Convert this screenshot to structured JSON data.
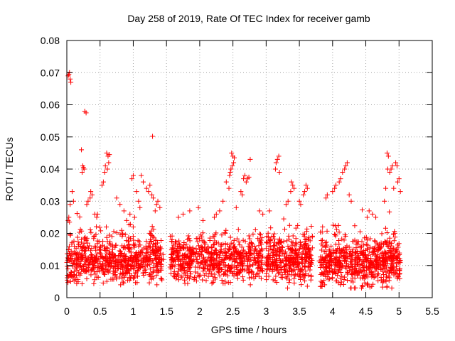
{
  "chart_data": {
    "type": "scatter",
    "title": "Day 258 of 2019, Rate Of TEC Index for receiver gamb",
    "xlabel": "GPS time / hours",
    "ylabel": "ROTI / TECUs",
    "xlim": [
      0,
      5.5
    ],
    "ylim": [
      0,
      0.08
    ],
    "xticks": [
      0,
      0.5,
      1,
      1.5,
      2,
      2.5,
      3,
      3.5,
      4,
      4.5,
      5,
      5.5
    ],
    "xtick_labels": [
      "0",
      "0.5",
      "1",
      "1.5",
      "2",
      "2.5",
      "3",
      "3.5",
      "4",
      "4.5",
      "5",
      "5.5"
    ],
    "yticks": [
      0,
      0.01,
      0.02,
      0.03,
      0.04,
      0.05,
      0.06,
      0.07,
      0.08
    ],
    "ytick_labels": [
      "0",
      "0.01",
      "0.02",
      "0.03",
      "0.04",
      "0.05",
      "0.06",
      "0.07",
      "0.08"
    ],
    "grid": true,
    "marker": "+",
    "color": "#ff0000",
    "series": [
      {
        "name": "ROTI",
        "points": [
          [
            0.02,
            0.069
          ],
          [
            0.04,
            0.07
          ],
          [
            0.05,
            0.068
          ],
          [
            0.06,
            0.067
          ],
          [
            0.03,
            0.0695
          ],
          [
            0.27,
            0.058
          ],
          [
            0.29,
            0.0575
          ],
          [
            1.29,
            0.0502
          ],
          [
            0.22,
            0.046
          ],
          [
            0.24,
            0.041
          ],
          [
            0.26,
            0.04
          ],
          [
            0.23,
            0.039
          ],
          [
            0.25,
            0.0405
          ],
          [
            0.6,
            0.045
          ],
          [
            0.62,
            0.044
          ],
          [
            0.64,
            0.0445
          ],
          [
            0.58,
            0.041
          ],
          [
            0.61,
            0.04
          ],
          [
            0.57,
            0.039
          ],
          [
            0.63,
            0.042
          ],
          [
            0.55,
            0.036
          ],
          [
            0.53,
            0.035
          ],
          [
            1.0,
            0.038
          ],
          [
            0.98,
            0.037
          ],
          [
            1.12,
            0.038
          ],
          [
            1.15,
            0.036
          ],
          [
            1.2,
            0.034
          ],
          [
            1.25,
            0.035
          ],
          [
            1.23,
            0.033
          ],
          [
            1.05,
            0.033
          ],
          [
            1.28,
            0.032
          ],
          [
            1.3,
            0.031
          ],
          [
            0.08,
            0.033
          ],
          [
            0.1,
            0.03
          ],
          [
            0.05,
            0.029
          ],
          [
            0.03,
            0.025
          ],
          [
            0.02,
            0.024
          ],
          [
            0.04,
            0.0235
          ],
          [
            0.36,
            0.033
          ],
          [
            0.38,
            0.032
          ],
          [
            0.35,
            0.031
          ],
          [
            0.32,
            0.03
          ],
          [
            0.3,
            0.029
          ],
          [
            0.42,
            0.026
          ],
          [
            0.45,
            0.025
          ],
          [
            0.46,
            0.026
          ],
          [
            0.75,
            0.031
          ],
          [
            0.8,
            0.029
          ],
          [
            0.86,
            0.027
          ],
          [
            0.9,
            0.024
          ],
          [
            0.95,
            0.026
          ],
          [
            1.02,
            0.025
          ],
          [
            1.08,
            0.03
          ],
          [
            1.1,
            0.028
          ],
          [
            1.35,
            0.029
          ],
          [
            1.37,
            0.03
          ],
          [
            1.4,
            0.028
          ],
          [
            1.33,
            0.027
          ],
          [
            2.48,
            0.045
          ],
          [
            2.5,
            0.044
          ],
          [
            2.52,
            0.0435
          ],
          [
            2.49,
            0.041
          ],
          [
            2.47,
            0.04
          ],
          [
            2.46,
            0.039
          ],
          [
            2.51,
            0.042
          ],
          [
            2.45,
            0.038
          ],
          [
            2.76,
            0.043
          ],
          [
            2.72,
            0.037
          ],
          [
            2.7,
            0.036
          ],
          [
            2.74,
            0.0375
          ],
          [
            2.66,
            0.037
          ],
          [
            2.68,
            0.038
          ],
          [
            2.62,
            0.033
          ],
          [
            2.64,
            0.032
          ],
          [
            2.4,
            0.036
          ],
          [
            2.44,
            0.034
          ],
          [
            2.35,
            0.03
          ],
          [
            3.17,
            0.043
          ],
          [
            3.19,
            0.044
          ],
          [
            3.15,
            0.042
          ],
          [
            3.14,
            0.04
          ],
          [
            3.2,
            0.039
          ],
          [
            3.38,
            0.036
          ],
          [
            3.4,
            0.035
          ],
          [
            3.37,
            0.033
          ],
          [
            3.42,
            0.034
          ],
          [
            3.33,
            0.03
          ],
          [
            3.3,
            0.029
          ],
          [
            3.6,
            0.035
          ],
          [
            3.62,
            0.034
          ],
          [
            3.58,
            0.033
          ],
          [
            3.56,
            0.032
          ],
          [
            3.5,
            0.03
          ],
          [
            3.52,
            0.029
          ],
          [
            2.22,
            0.025
          ],
          [
            2.25,
            0.026
          ],
          [
            1.98,
            0.028
          ],
          [
            1.85,
            0.027
          ],
          [
            1.75,
            0.026
          ],
          [
            1.68,
            0.025
          ],
          [
            2.05,
            0.024
          ],
          [
            2.3,
            0.027
          ],
          [
            2.55,
            0.028
          ],
          [
            2.9,
            0.027
          ],
          [
            2.95,
            0.026
          ],
          [
            3.05,
            0.027
          ],
          [
            4.18,
            0.04
          ],
          [
            4.2,
            0.041
          ],
          [
            4.22,
            0.042
          ],
          [
            4.15,
            0.039
          ],
          [
            4.12,
            0.037
          ],
          [
            4.1,
            0.036
          ],
          [
            4.05,
            0.035
          ],
          [
            4.03,
            0.034
          ],
          [
            4.0,
            0.033
          ],
          [
            3.92,
            0.032
          ],
          [
            3.9,
            0.031
          ],
          [
            4.25,
            0.032
          ],
          [
            4.28,
            0.03
          ],
          [
            4.82,
            0.045
          ],
          [
            4.84,
            0.044
          ],
          [
            4.83,
            0.04
          ],
          [
            4.86,
            0.039
          ],
          [
            4.88,
            0.04
          ],
          [
            4.9,
            0.041
          ],
          [
            4.95,
            0.042
          ],
          [
            4.97,
            0.041
          ],
          [
            5.0,
            0.037
          ],
          [
            4.98,
            0.036
          ],
          [
            4.92,
            0.034
          ],
          [
            4.8,
            0.034
          ],
          [
            4.78,
            0.03
          ],
          [
            5.02,
            0.033
          ],
          [
            4.55,
            0.027
          ],
          [
            4.52,
            0.025
          ],
          [
            4.6,
            0.026
          ],
          [
            4.65,
            0.025
          ]
        ],
        "clusters": [
          {
            "x": [
              0.0,
              1.45
            ],
            "y_median": 0.0115,
            "y_range": [
              0.004,
              0.03
            ],
            "count": 700
          },
          {
            "x": [
              1.55,
              2.95
            ],
            "y_median": 0.0115,
            "y_range": [
              0.004,
              0.028
            ],
            "count": 650
          },
          {
            "x": [
              3.0,
              3.7
            ],
            "y_median": 0.012,
            "y_range": [
              0.003,
              0.03
            ],
            "count": 380
          },
          {
            "x": [
              3.8,
              5.02
            ],
            "y_median": 0.011,
            "y_range": [
              0.003,
              0.03
            ],
            "count": 650
          }
        ]
      }
    ]
  }
}
